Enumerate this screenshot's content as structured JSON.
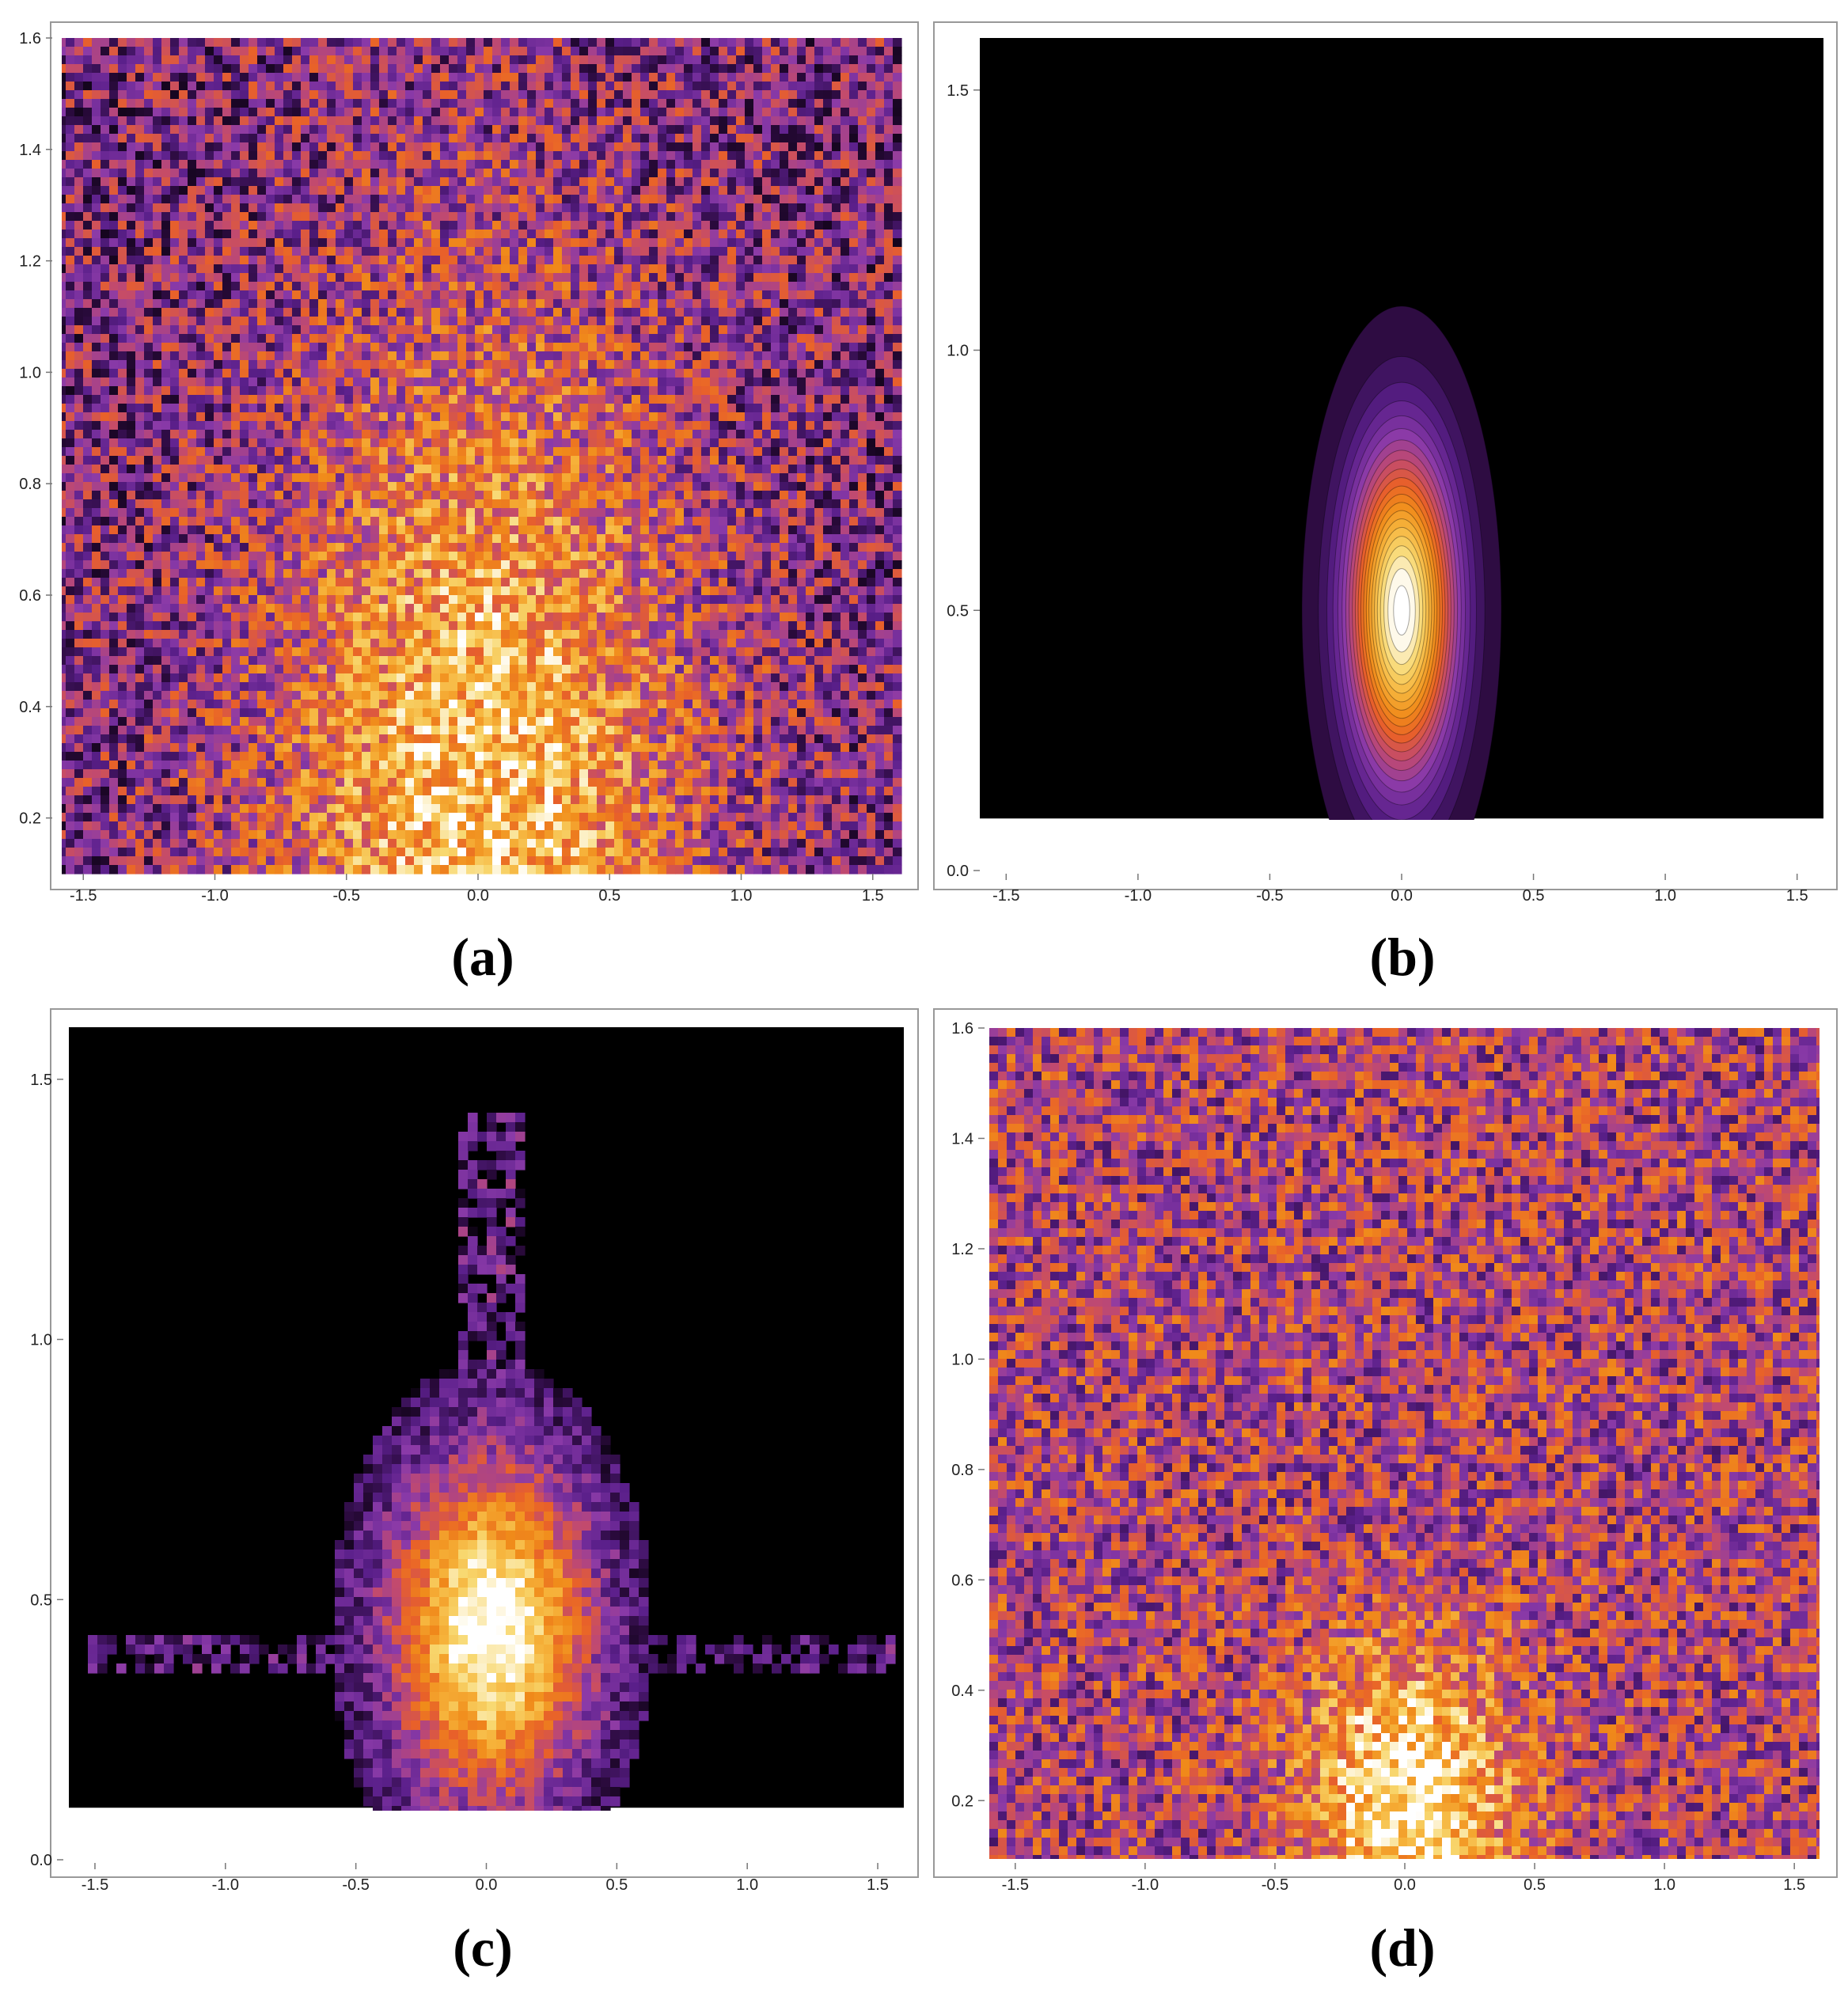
{
  "chart_data": [
    {
      "panel": "a",
      "type": "heatmap",
      "caption": "(a)",
      "xlim": [
        -1.6,
        1.6
      ],
      "ylim": [
        0.1,
        1.6
      ],
      "x_ticks": [
        "-1.5",
        "-1.0",
        "-0.5",
        "0.0",
        "0.5",
        "1.0",
        "1.5"
      ],
      "x_tick_values": [
        -1.5,
        -1.0,
        -0.5,
        0.0,
        0.5,
        1.0,
        1.5
      ],
      "y_ticks": [
        "0.2",
        "0.4",
        "0.6",
        "0.8",
        "1.0",
        "1.2",
        "1.4",
        "1.6"
      ],
      "y_tick_values": [
        0.2,
        0.4,
        0.6,
        0.8,
        1.0,
        1.2,
        1.4,
        1.6
      ],
      "field": "noisy",
      "peak": [
        0.0,
        0.22
      ],
      "spread": [
        0.55,
        0.6
      ],
      "noise": 0.5,
      "background": 0.3
    },
    {
      "panel": "b",
      "type": "heatmap",
      "caption": "(b)",
      "xlim": [
        -1.6,
        1.6
      ],
      "ylim": [
        0.0,
        1.6
      ],
      "plot_ymin": 0.1,
      "x_ticks": [
        "-1.5",
        "-1.0",
        "-0.5",
        "0.0",
        "0.5",
        "1.0",
        "1.5"
      ],
      "x_tick_values": [
        -1.5,
        -1.0,
        -0.5,
        0.0,
        0.5,
        1.0,
        1.5
      ],
      "y_ticks": [
        "0.0",
        "0.5",
        "1.0",
        "1.5"
      ],
      "y_tick_values": [
        0.0,
        0.5,
        1.0,
        1.5
      ],
      "field": "gaussian",
      "peak": [
        0.0,
        0.5
      ],
      "spread": [
        0.26,
        0.22
      ],
      "noise": 0.0,
      "background": 0.0
    },
    {
      "panel": "c",
      "type": "heatmap",
      "caption": "(c)",
      "xlim": [
        -1.6,
        1.6
      ],
      "ylim": [
        0.0,
        1.6
      ],
      "plot_ymin": 0.1,
      "x_ticks": [
        "-1.5",
        "-1.0",
        "-0.5",
        "0.0",
        "0.5",
        "1.0",
        "1.5"
      ],
      "x_tick_values": [
        -1.5,
        -1.0,
        -0.5,
        0.0,
        0.5,
        1.0,
        1.5
      ],
      "y_ticks": [
        "0.0",
        "0.5",
        "1.0",
        "1.5"
      ],
      "y_tick_values": [
        0.0,
        0.5,
        1.0,
        1.5
      ],
      "field": "blob",
      "peak": [
        0.0,
        0.45
      ],
      "spread": [
        0.26,
        0.22
      ],
      "noise": 0.25,
      "background": 0.0
    },
    {
      "panel": "d",
      "type": "heatmap",
      "caption": "(d)",
      "xlim": [
        -1.6,
        1.6
      ],
      "ylim": [
        0.1,
        1.6
      ],
      "x_ticks": [
        "-1.5",
        "-1.0",
        "-0.5",
        "0.0",
        "0.5",
        "1.0",
        "1.5"
      ],
      "x_tick_values": [
        -1.5,
        -1.0,
        -0.5,
        0.0,
        0.5,
        1.0,
        1.5
      ],
      "y_ticks": [
        "0.2",
        "0.4",
        "0.6",
        "0.8",
        "1.0",
        "1.2",
        "1.4",
        "1.6"
      ],
      "y_tick_values": [
        0.2,
        0.4,
        0.6,
        0.8,
        1.0,
        1.2,
        1.4,
        1.6
      ],
      "field": "noisy",
      "peak": [
        0.0,
        0.22
      ],
      "spread": [
        0.28,
        0.18
      ],
      "noise": 0.5,
      "background": 0.42
    }
  ],
  "colors": {
    "colormap": [
      "#000000",
      "#2a0a3c",
      "#5a1f8a",
      "#8a3aa8",
      "#c24a6e",
      "#e8602a",
      "#f08a1a",
      "#f6b23a",
      "#f8d870",
      "#ffffff"
    ],
    "frame": "#999999"
  }
}
